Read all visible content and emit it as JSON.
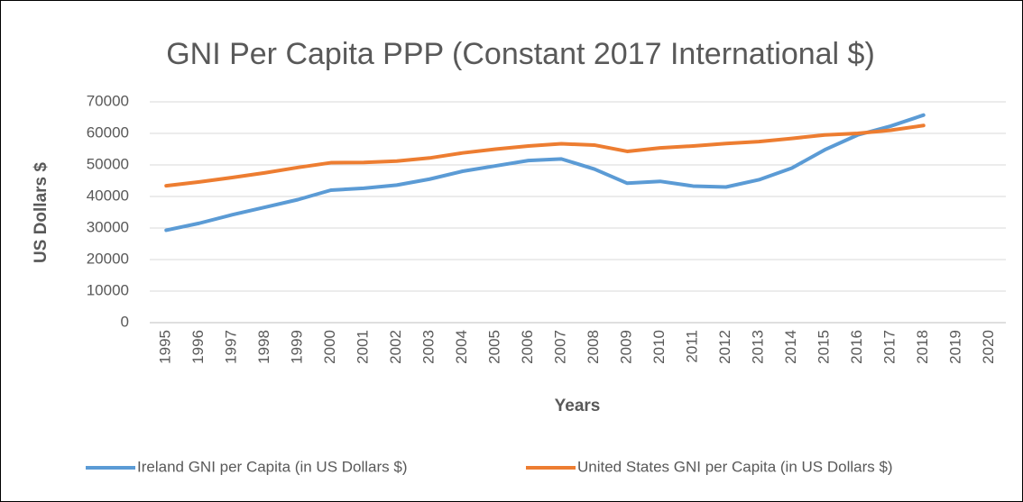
{
  "chart_data": {
    "type": "line",
    "title": "GNI Per Capita PPP (Constant 2017 International $)",
    "y_label": "US Dollars $",
    "x_label": "Years",
    "categories": [
      "1995",
      "1996",
      "1997",
      "1998",
      "1999",
      "2000",
      "2001",
      "2002",
      "2003",
      "2004",
      "2005",
      "2006",
      "2007",
      "2008",
      "2009",
      "2010",
      "2011",
      "2012",
      "2013",
      "2014",
      "2015",
      "2016",
      "2017",
      "2018",
      "2019",
      "2020"
    ],
    "series": [
      {
        "name": "Ireland GNI per Capita (in US Dollars $)",
        "color": "#5b9bd5",
        "values": [
          29300,
          31500,
          34200,
          36600,
          39000,
          42000,
          42600,
          43600,
          45500,
          48000,
          49700,
          51400,
          51900,
          48700,
          44200,
          44800,
          43300,
          43000,
          45300,
          49000,
          54800,
          59500,
          62300,
          65800,
          null,
          null
        ]
      },
      {
        "name": "United States GNI per Capita (in US Dollars $)",
        "color": "#ed7d31",
        "values": [
          43400,
          44600,
          46000,
          47500,
          49200,
          50700,
          50800,
          51200,
          52200,
          53800,
          55000,
          56000,
          56700,
          56300,
          54300,
          55400,
          56000,
          56800,
          57400,
          58400,
          59500,
          60000,
          61000,
          62500,
          null,
          null
        ]
      }
    ],
    "ylim": [
      0,
      70000
    ],
    "yticks": [
      0,
      10000,
      20000,
      30000,
      40000,
      50000,
      60000,
      70000
    ],
    "grid": true,
    "legend": "bottom"
  }
}
